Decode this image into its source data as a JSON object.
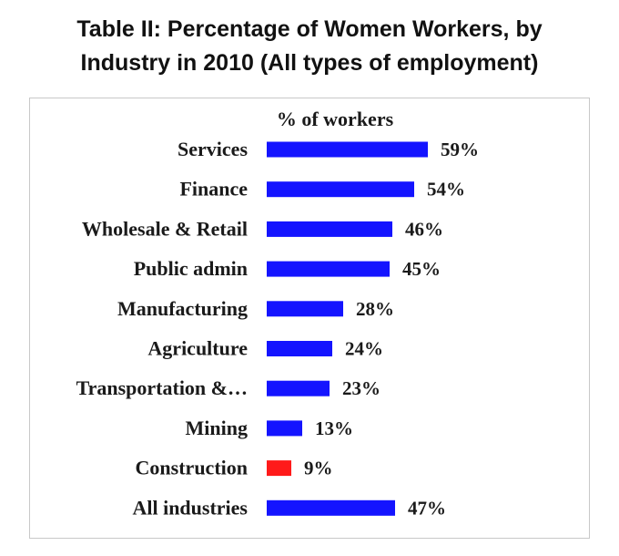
{
  "title": {
    "line1": "Table II: Percentage of Women Workers, by",
    "line2": "Industry in 2010 (All types of employment)"
  },
  "chart_data": {
    "type": "bar",
    "orientation": "horizontal",
    "column_header": "% of workers",
    "categories": [
      "Services",
      "Finance",
      "Wholesale & Retail",
      "Public admin",
      "Manufacturing",
      "Agriculture",
      "Transportation &…",
      "Mining",
      "Construction",
      "All industries"
    ],
    "values": [
      59,
      54,
      46,
      45,
      28,
      24,
      23,
      13,
      9,
      47
    ],
    "value_labels": [
      "59%",
      "54%",
      "46%",
      "45%",
      "28%",
      "24%",
      "23%",
      "13%",
      "9%",
      "47%"
    ],
    "colors": [
      "#1414ff",
      "#1414ff",
      "#1414ff",
      "#1414ff",
      "#1414ff",
      "#1414ff",
      "#1414ff",
      "#1414ff",
      "#ff1a1a",
      "#1414ff"
    ],
    "grid": false,
    "legend": "none"
  }
}
